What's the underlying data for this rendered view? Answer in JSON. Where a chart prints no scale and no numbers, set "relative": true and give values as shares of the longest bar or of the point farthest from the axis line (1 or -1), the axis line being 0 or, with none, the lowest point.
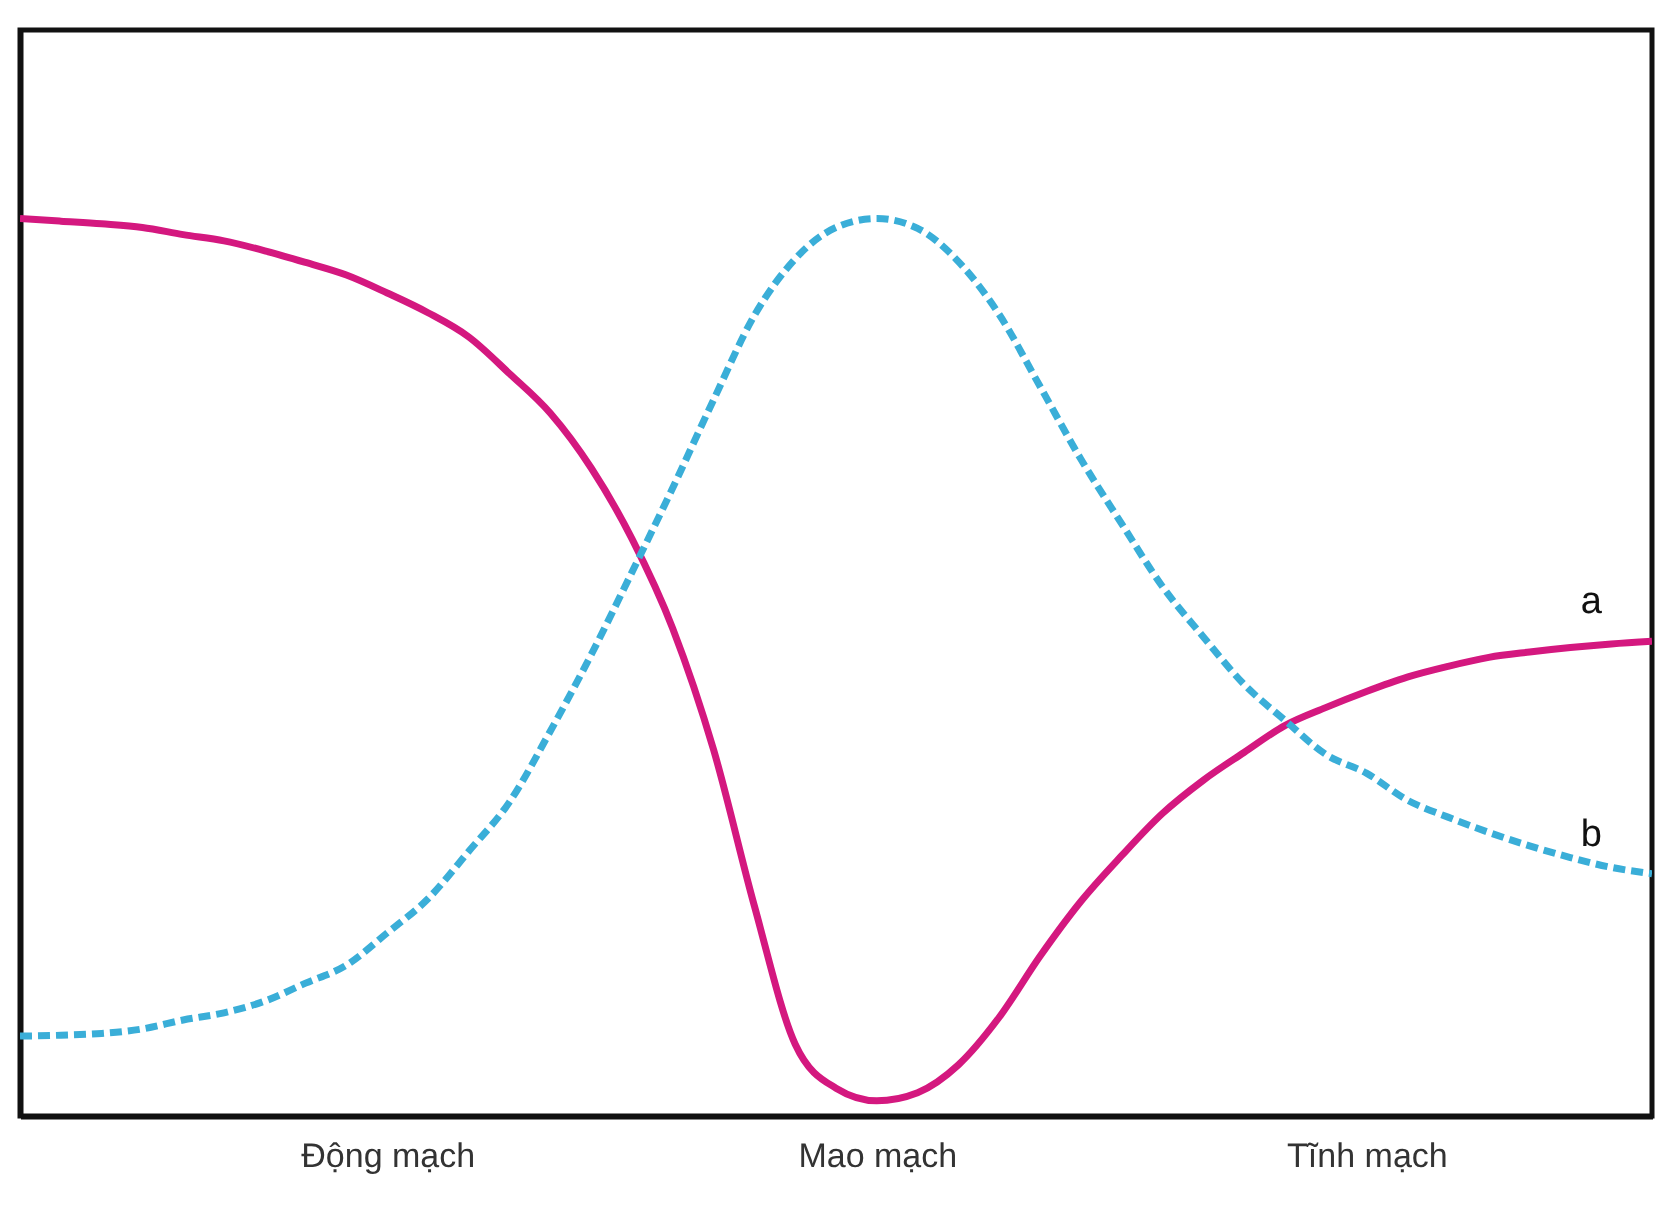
{
  "chart_data": {
    "type": "line",
    "relative": true,
    "categories": [
      null,
      null,
      null,
      null,
      null,
      null,
      null,
      null,
      null,
      "Động mạch",
      null,
      null,
      null,
      null,
      null,
      null,
      null,
      null,
      null,
      null,
      null,
      "Mao mạch",
      null,
      null,
      null,
      null,
      null,
      null,
      null,
      null,
      null,
      null,
      null,
      "Tĩnh mạch",
      null,
      null,
      null,
      null,
      null,
      null,
      null
    ],
    "grid": false,
    "series": [
      {
        "name": "a",
        "color": "#d4187f",
        "line_style": "solid",
        "values": [
          1.0,
          0.997,
          0.994,
          0.99,
          0.982,
          0.975,
          0.964,
          0.951,
          0.937,
          0.917,
          0.895,
          0.868,
          0.827,
          0.783,
          0.722,
          0.643,
          0.543,
          0.408,
          0.234,
          0.08,
          0.031,
          0.017,
          0.026,
          0.057,
          0.11,
          0.178,
          0.239,
          0.29,
          0.337,
          0.374,
          0.405,
          0.435,
          0.455,
          0.473,
          0.489,
          0.501,
          0.511,
          0.517,
          0.522,
          0.526,
          0.529
        ]
      },
      {
        "name": "b",
        "color": "#3aaed8",
        "line_style": "dashed",
        "values": [
          0.089,
          0.09,
          0.092,
          0.097,
          0.107,
          0.115,
          0.128,
          0.148,
          0.168,
          0.204,
          0.242,
          0.295,
          0.35,
          0.429,
          0.514,
          0.606,
          0.7,
          0.798,
          0.892,
          0.955,
          0.99,
          1.0,
          0.989,
          0.952,
          0.893,
          0.813,
          0.732,
          0.66,
          0.59,
          0.534,
          0.481,
          0.441,
          0.403,
          0.382,
          0.352,
          0.333,
          0.316,
          0.301,
          0.288,
          0.277,
          0.27
        ]
      }
    ]
  }
}
